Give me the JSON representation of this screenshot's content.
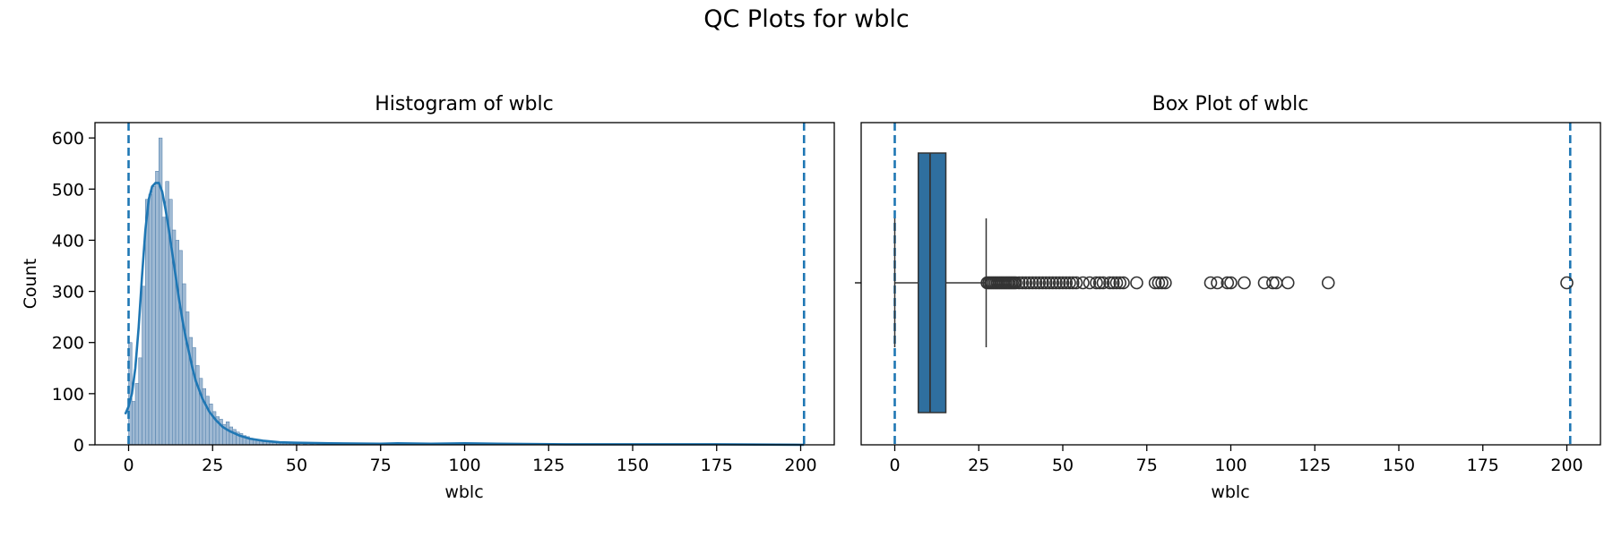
{
  "figure_title": "QC Plots for wblc",
  "chart_data": [
    {
      "type": "histogram",
      "title": "Histogram of wblc",
      "xlabel": "wblc",
      "ylabel": "Count",
      "xlim": [
        -10,
        210
      ],
      "ylim": [
        0,
        630
      ],
      "xticks": [
        0,
        25,
        50,
        75,
        100,
        125,
        150,
        175,
        200
      ],
      "yticks": [
        0,
        100,
        200,
        300,
        400,
        500,
        600
      ],
      "bin_width": 1,
      "bins": [
        [
          0,
          200
        ],
        [
          1,
          85
        ],
        [
          2,
          120
        ],
        [
          3,
          170
        ],
        [
          4,
          310
        ],
        [
          5,
          480
        ],
        [
          6,
          490
        ],
        [
          7,
          505
        ],
        [
          8,
          535
        ],
        [
          9,
          600
        ],
        [
          10,
          445
        ],
        [
          11,
          515
        ],
        [
          12,
          480
        ],
        [
          13,
          420
        ],
        [
          14,
          400
        ],
        [
          15,
          380
        ],
        [
          16,
          315
        ],
        [
          17,
          260
        ],
        [
          18,
          210
        ],
        [
          19,
          190
        ],
        [
          20,
          155
        ],
        [
          21,
          130
        ],
        [
          22,
          110
        ],
        [
          23,
          95
        ],
        [
          24,
          80
        ],
        [
          25,
          65
        ],
        [
          26,
          55
        ],
        [
          27,
          50
        ],
        [
          28,
          40
        ],
        [
          29,
          45
        ],
        [
          30,
          35
        ],
        [
          31,
          30
        ],
        [
          32,
          25
        ],
        [
          33,
          22
        ],
        [
          34,
          18
        ],
        [
          35,
          16
        ],
        [
          36,
          13
        ],
        [
          37,
          11
        ],
        [
          38,
          10
        ],
        [
          39,
          9
        ],
        [
          40,
          8
        ],
        [
          41,
          7
        ],
        [
          42,
          6
        ],
        [
          43,
          5
        ],
        [
          44,
          5
        ],
        [
          45,
          4
        ],
        [
          46,
          4
        ],
        [
          47,
          3
        ],
        [
          48,
          3
        ],
        [
          49,
          3
        ],
        [
          50,
          2
        ],
        [
          52,
          2
        ],
        [
          54,
          2
        ],
        [
          56,
          1
        ],
        [
          58,
          2
        ],
        [
          60,
          1
        ],
        [
          62,
          1
        ],
        [
          64,
          1
        ],
        [
          66,
          1
        ],
        [
          68,
          1
        ],
        [
          72,
          1
        ],
        [
          78,
          2
        ],
        [
          80,
          2
        ],
        [
          94,
          1
        ],
        [
          96,
          1
        ],
        [
          99,
          1
        ],
        [
          100,
          3
        ],
        [
          104,
          1
        ],
        [
          110,
          1
        ],
        [
          113,
          1
        ],
        [
          117,
          1
        ],
        [
          129,
          1
        ],
        [
          200,
          1
        ]
      ],
      "kde": {
        "x": [
          -1,
          0,
          1,
          2,
          3,
          4,
          5,
          6,
          7,
          8,
          9,
          10,
          11,
          12,
          13,
          14,
          15,
          16,
          17,
          18,
          19,
          20,
          22,
          24,
          26,
          28,
          30,
          33,
          36,
          40,
          45,
          50,
          60,
          75,
          80,
          90,
          100,
          110,
          130,
          150,
          175,
          201
        ],
        "y": [
          60,
          75,
          100,
          150,
          230,
          330,
          420,
          480,
          505,
          512,
          512,
          495,
          460,
          420,
          375,
          330,
          285,
          245,
          210,
          180,
          150,
          125,
          90,
          65,
          48,
          35,
          27,
          18,
          12,
          8,
          5,
          4,
          3,
          2,
          3,
          2,
          3,
          2,
          1,
          1,
          1,
          0
        ]
      },
      "vlines": [
        0,
        201
      ],
      "colors": {
        "bar_fill": "#9fb9d3",
        "bar_edge": "#4a7aa8",
        "kde": "#1f77b4",
        "vline": "#1f77b4"
      }
    },
    {
      "type": "box",
      "title": "Box Plot of wblc",
      "xlabel": "wblc",
      "xlim": [
        -10,
        210
      ],
      "xticks": [
        0,
        25,
        50,
        75,
        100,
        125,
        150,
        175,
        200
      ],
      "whisker_low": 0,
      "q1": 7,
      "median": 10.5,
      "q3": 15.2,
      "whisker_high": 27.2,
      "outliers": [
        27.5,
        28,
        28.5,
        29,
        29.5,
        30,
        30.5,
        31,
        31.5,
        32,
        32.5,
        33,
        33.5,
        34,
        34.5,
        35,
        35.5,
        36,
        37,
        38,
        39,
        40,
        41,
        42,
        43,
        44,
        45,
        46,
        47,
        48,
        49,
        50,
        51,
        52,
        53,
        54,
        56,
        58,
        60,
        61,
        62,
        64,
        65,
        66,
        67,
        68,
        72,
        77.5,
        78.5,
        79.5,
        80.5,
        94,
        96,
        99,
        100,
        104,
        110,
        112.5,
        113.5,
        117,
        129,
        200
      ],
      "vlines": [
        0,
        201
      ],
      "colors": {
        "box_fill": "#2f6f9f",
        "line": "#333333",
        "vline": "#1f77b4"
      }
    }
  ]
}
